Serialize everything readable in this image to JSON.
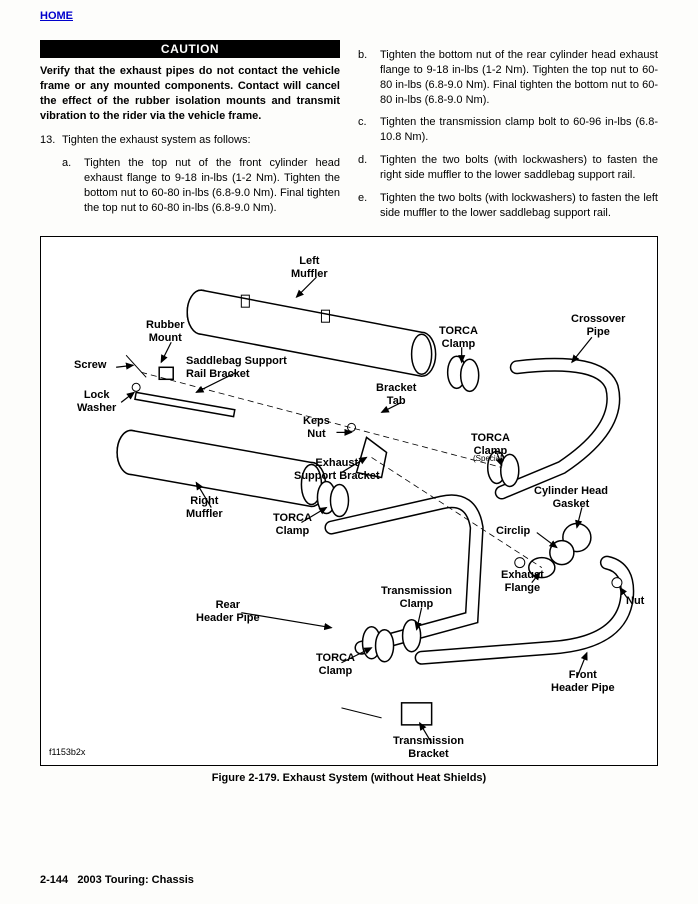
{
  "nav": {
    "home": "HOME"
  },
  "caution": {
    "heading": "CAUTION",
    "text": "Verify that the exhaust pipes do not contact the vehicle frame or any mounted components. Contact will cancel the effect of the rubber isolation mounts and transmit vibration to the rider via the vehicle frame."
  },
  "step": {
    "num": "13.",
    "text": "Tighten the exhaust system as follows:",
    "a_lbl": "a.",
    "a": "Tighten the top nut of the front cylinder head exhaust flange to 9-18 in-lbs (1-2 Nm). Tighten the bottom nut to 60-80 in-lbs (6.8-9.0 Nm). Final tighten the top nut to 60-80 in-lbs (6.8-9.0 Nm).",
    "b_lbl": "b.",
    "b": "Tighten the bottom nut of the rear cylinder head exhaust flange to 9-18 in-lbs (1-2 Nm). Tighten the top nut to 60-80 in-lbs (6.8-9.0 Nm). Final tighten the bottom nut to 60-80 in-lbs (6.8-9.0 Nm).",
    "c_lbl": "c.",
    "c": "Tighten the transmission clamp bolt to 60-96 in-lbs (6.8-10.8 Nm).",
    "d_lbl": "d.",
    "d": "Tighten the two bolts (with lockwashers) to fasten the right side muffler to the lower saddlebag support rail.",
    "e_lbl": "e.",
    "e": "Tighten the two bolts (with lockwashers) to fasten the left side muffler to the lower saddlebag support rail."
  },
  "figure": {
    "caption": "Figure 2-179.  Exhaust System (without Heat Shields)",
    "code": "f1153b2x",
    "labels": {
      "left_muffler": "Left\nMuffler",
      "rubber_mount": "Rubber\nMount",
      "screw": "Screw",
      "lock_washer": "Lock\nWasher",
      "saddlebag": "Saddlebag Support\nRail Bracket",
      "bracket_tab": "Bracket\nTab",
      "torca_clamp_1": "TORCA\nClamp",
      "crossover_pipe": "Crossover\nPipe",
      "keps_nut": "Keps\nNut",
      "exhaust_support": "Exhaust\nSupport Bracket",
      "torca_special": "TORCA\nClamp",
      "torca_special_sub": "(Special)",
      "right_muffler": "Right\nMuffler",
      "torca_clamp_2": "TORCA\nClamp",
      "cyl_head_gasket": "Cylinder Head\nGasket",
      "circlip": "Circlip",
      "rear_header": "Rear\nHeader Pipe",
      "trans_clamp": "Transmission\nClamp",
      "torca_clamp_3": "TORCA\nClamp",
      "exhaust_flange": "Exhaust\nFlange",
      "nut": "Nut",
      "front_header": "Front\nHeader Pipe",
      "trans_bracket": "Transmission\nBracket"
    }
  },
  "footer": {
    "page": "2-144",
    "title": "2003 Touring: Chassis"
  },
  "colors": {
    "link": "#0000cc",
    "text": "#000000",
    "bg": "#fdfdfb"
  }
}
